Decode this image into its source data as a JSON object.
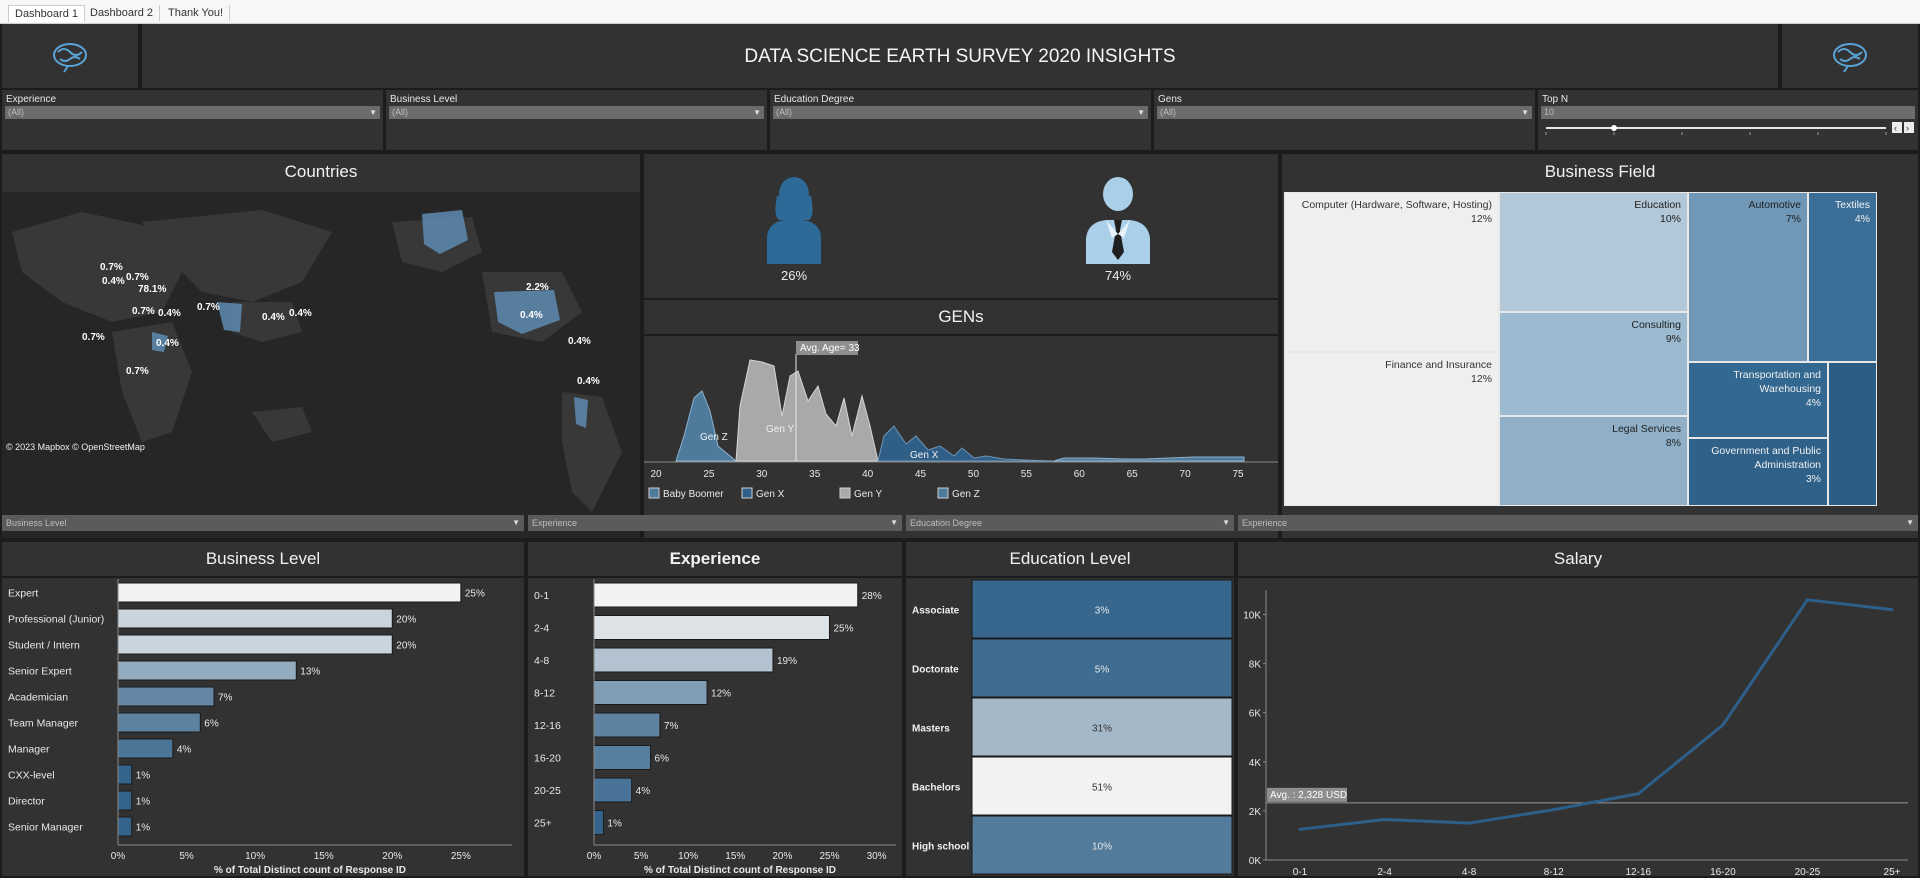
{
  "tabs": [
    "Dashboard 1",
    "Dashboard 2",
    "Thank You!"
  ],
  "header": {
    "title": "DATA SCIENCE EARTH SURVEY 2020 INSIGHTS"
  },
  "filters": [
    {
      "label": "Experience",
      "value": "(All)"
    },
    {
      "label": "Business Level",
      "value": "(All)"
    },
    {
      "label": "Education Degree",
      "value": "(All)"
    },
    {
      "label": "Gens",
      "value": "(All)"
    },
    {
      "label": "Top N",
      "value": "10"
    }
  ],
  "countries": {
    "title": "Countries",
    "attribution": "© 2023 Mapbox  © OpenStreetMap",
    "labels": [
      "0.7%",
      "0.4%",
      "0.7%",
      "78.1%",
      "0.7%",
      "0.4%",
      "0.7%",
      "0.4%",
      "0.4%",
      "0.7%",
      "0.4%",
      "0.7%",
      "2.2%",
      "0.4%",
      "0.4%",
      "0.4%"
    ]
  },
  "gender": {
    "female": "26%",
    "male": "74%"
  },
  "gens": {
    "title": "GENs",
    "avg_label": "Avg. Age= 33",
    "legend": [
      "Baby Boomer",
      "Gen X",
      "Gen Y",
      "Gen Z"
    ],
    "area_labels": [
      "Gen Z",
      "Gen Y",
      "Gen X"
    ],
    "x_ticks": [
      "20",
      "25",
      "30",
      "35",
      "40",
      "45",
      "50",
      "55",
      "60",
      "65",
      "70",
      "75"
    ],
    "colors": {
      "gen_z": "#4e7a9c",
      "gen_y": "#a9a9a9",
      "gen_x": "#2f5f86",
      "baby_boomer": "#4e7a9c"
    }
  },
  "business_field": {
    "title": "Business Field",
    "cells": [
      {
        "name": "Computer (Hardware, Software, Hosting)",
        "pct": "12%"
      },
      {
        "name": "Finance and Insurance",
        "pct": "12%"
      },
      {
        "name": "Education",
        "pct": "10%"
      },
      {
        "name": "Consulting",
        "pct": "9%"
      },
      {
        "name": "Legal Services",
        "pct": "8%"
      },
      {
        "name": "Automotive",
        "pct": "7%"
      },
      {
        "name": "Textiles",
        "pct": "4%"
      },
      {
        "name": "Transportation and Warehousing",
        "pct": "4%"
      },
      {
        "name": "Government and Public Administration",
        "pct": "3%"
      }
    ]
  },
  "small_filters": [
    "Business Level",
    "Experience",
    "Education Degree",
    "Experience"
  ],
  "chart_data": [
    {
      "type": "bar",
      "title": "Business Level",
      "orientation": "horizontal",
      "categories": [
        "Expert",
        "Professional (Junior)",
        "Student / Intern",
        "Senior Expert",
        "Academician",
        "Team Manager",
        "Manager",
        "CXX-level",
        "Director",
        "Senior Manager"
      ],
      "values": [
        25,
        20,
        20,
        13,
        7,
        6,
        4,
        1,
        1,
        1
      ],
      "labels": [
        "25%",
        "20%",
        "20%",
        "13%",
        "7%",
        "6%",
        "4%",
        "1%",
        "1%",
        "1%"
      ],
      "x_ticks": [
        "0%",
        "5%",
        "10%",
        "15%",
        "20%",
        "25%"
      ],
      "xlim": [
        0,
        28
      ],
      "xlabel": "% of Total Distinct count of Response ID"
    },
    {
      "type": "bar",
      "title": "Experience",
      "orientation": "horizontal",
      "categories": [
        "0-1",
        "2-4",
        "4-8",
        "8-12",
        "12-16",
        "16-20",
        "20-25",
        "25+"
      ],
      "values": [
        28,
        25,
        19,
        12,
        7,
        6,
        4,
        1
      ],
      "labels": [
        "28%",
        "25%",
        "19%",
        "12%",
        "7%",
        "6%",
        "4%",
        "1%"
      ],
      "x_ticks": [
        "0%",
        "5%",
        "10%",
        "15%",
        "20%",
        "25%",
        "30%"
      ],
      "xlim": [
        0,
        31
      ],
      "xlabel": "% of Total Distinct count of Response ID"
    },
    {
      "type": "heatmap",
      "title": "Education Level",
      "categories": [
        "Associate",
        "Doctorate",
        "Masters",
        "Bachelors",
        "High school"
      ],
      "values": [
        3,
        5,
        31,
        51,
        10
      ],
      "labels": [
        "3%",
        "5%",
        "31%",
        "51%",
        "10%"
      ]
    },
    {
      "type": "line",
      "title": "Salary",
      "x": [
        "0-1",
        "2-4",
        "4-8",
        "8-12",
        "12-16",
        "16-20",
        "20-25",
        "25+"
      ],
      "values": [
        1250,
        1650,
        1500,
        2050,
        2700,
        5500,
        10600,
        10200
      ],
      "y_ticks": [
        "0K",
        "2K",
        "4K",
        "6K",
        "8K",
        "10K"
      ],
      "ylim": [
        0,
        11000
      ],
      "avg_value": 2328,
      "avg_label": "Avg. : 2,328 USD"
    }
  ]
}
